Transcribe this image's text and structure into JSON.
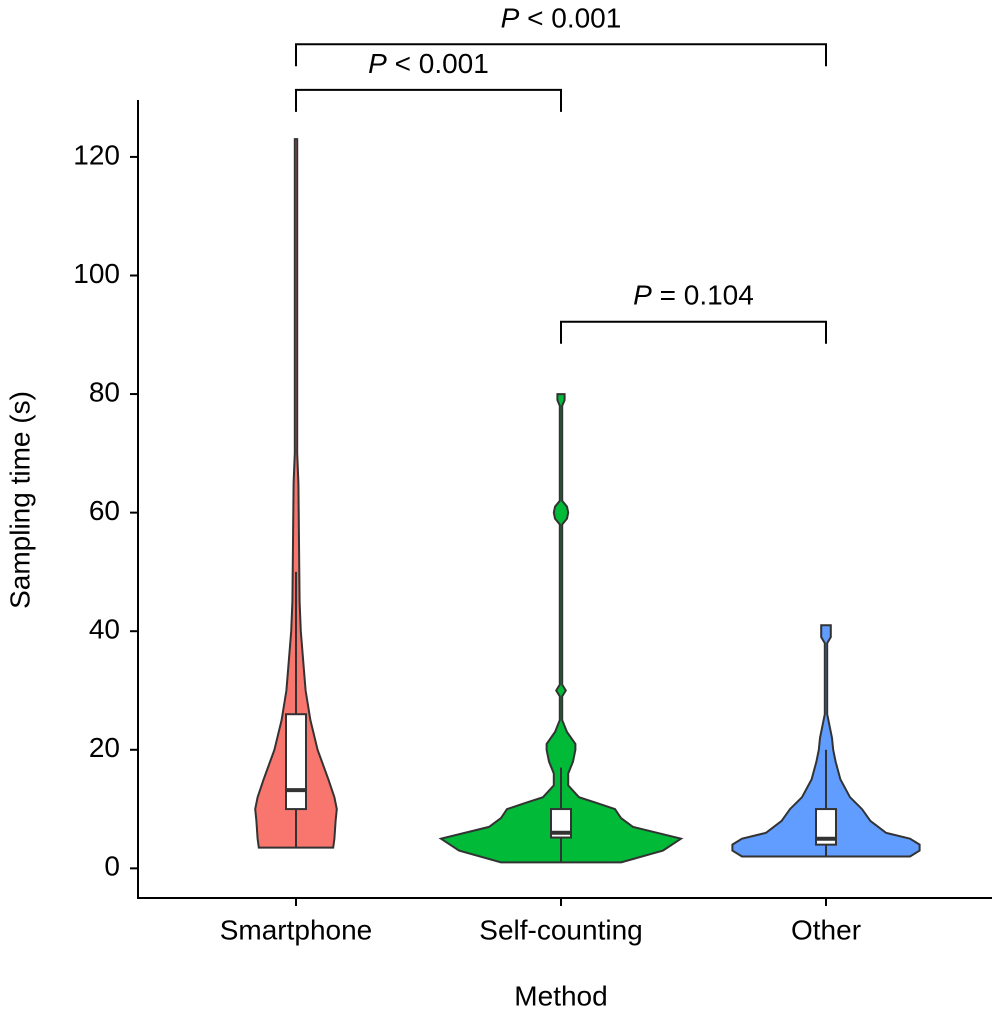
{
  "chart_data": {
    "type": "violin",
    "x_label": "Method",
    "y_label": "Sampling time (s)",
    "ylim": [
      -5,
      129.6
    ],
    "yticks": [
      0,
      20,
      40,
      60,
      80,
      100,
      120
    ],
    "categories": [
      "Smartphone",
      "Self-counting",
      "Other"
    ],
    "series": [
      {
        "name": "Smartphone",
        "color": "#F8766D",
        "violin_y": [
          3.5,
          5,
          8,
          10,
          12,
          15,
          20,
          25,
          30,
          35,
          40,
          45,
          55,
          65,
          70,
          123
        ],
        "violin_width": [
          0.31,
          0.32,
          0.33,
          0.34,
          0.32,
          0.27,
          0.18,
          0.12,
          0.08,
          0.06,
          0.04,
          0.03,
          0.025,
          0.02,
          0.01,
          0.01
        ],
        "whisker_low": 3.5,
        "q1": 10,
        "median": 13.2,
        "q3": 26,
        "whisker_high": 50
      },
      {
        "name": "Self-counting",
        "color": "#00BA38",
        "violin_y": [
          1,
          3,
          5,
          7,
          8.5,
          10,
          11,
          12,
          14,
          16,
          18,
          20,
          21,
          23,
          25,
          29,
          30,
          31,
          58,
          59,
          60,
          61,
          62,
          78,
          79,
          80
        ],
        "violin_width": [
          0.5,
          0.85,
          1,
          0.6,
          0.5,
          0.45,
          0.3,
          0.15,
          0.06,
          0.06,
          0.1,
          0.12,
          0.12,
          0.05,
          0.01,
          0.01,
          0.04,
          0.01,
          0.01,
          0.05,
          0.06,
          0.05,
          0.01,
          0.01,
          0.03,
          0.03
        ],
        "whisker_low": 1,
        "q1": 5.2,
        "median": 6,
        "q3": 10,
        "whisker_high": 17
      },
      {
        "name": "Other",
        "color": "#619CFF",
        "violin_y": [
          2,
          3,
          4,
          5,
          6,
          8,
          10,
          12,
          15,
          18,
          20,
          22,
          24,
          26,
          38,
          39,
          41
        ],
        "violin_width": [
          0.7,
          0.78,
          0.78,
          0.7,
          0.5,
          0.37,
          0.3,
          0.2,
          0.12,
          0.08,
          0.06,
          0.05,
          0.03,
          0.01,
          0.01,
          0.04,
          0.04
        ],
        "whisker_low": 2,
        "q1": 4,
        "median": 5,
        "q3": 10,
        "whisker_high": 20
      }
    ],
    "comparisons": [
      {
        "from": 0,
        "to": 2,
        "y": 139,
        "label": "P < 0.001"
      },
      {
        "from": 0,
        "to": 1,
        "y": 131.3,
        "label": "P < 0.001"
      },
      {
        "from": 1,
        "to": 2,
        "y": 92.2,
        "label": "P = 0.104"
      }
    ]
  }
}
